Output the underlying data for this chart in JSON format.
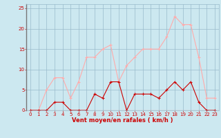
{
  "x": [
    0,
    1,
    2,
    3,
    4,
    5,
    6,
    7,
    8,
    9,
    10,
    11,
    12,
    13,
    14,
    15,
    16,
    17,
    18,
    19,
    20,
    21,
    22,
    23
  ],
  "avg_wind": [
    0,
    0,
    0,
    2,
    2,
    0,
    0,
    0,
    4,
    3,
    7,
    7,
    0,
    4,
    4,
    4,
    3,
    5,
    7,
    5,
    7,
    2,
    0,
    0
  ],
  "gust_wind": [
    0,
    0,
    5,
    8,
    8,
    3,
    7,
    13,
    13,
    15,
    16,
    7,
    11,
    13,
    15,
    15,
    15,
    18,
    23,
    21,
    21,
    13,
    3,
    3
  ],
  "avg_color": "#cc0000",
  "gust_color": "#ffaaaa",
  "bg_color": "#cce8f0",
  "grid_color": "#99bbcc",
  "xlabel": "Vent moyen/en rafales ( km/h )",
  "xlabel_color": "#cc0000",
  "tick_color": "#cc0000",
  "ylim": [
    0,
    26
  ],
  "xlim": [
    -0.5,
    23.5
  ],
  "yticks": [
    0,
    5,
    10,
    15,
    20,
    25
  ],
  "xticks": [
    0,
    1,
    2,
    3,
    4,
    5,
    6,
    7,
    8,
    9,
    10,
    11,
    12,
    13,
    14,
    15,
    16,
    17,
    18,
    19,
    20,
    21,
    22,
    23
  ],
  "xticklabels": [
    "0",
    "1",
    "2",
    "3",
    "4",
    "5",
    "6",
    "7",
    "8",
    "9",
    "10",
    "11",
    "12",
    "13",
    "14",
    "15",
    "16",
    "17",
    "18",
    "19",
    "20",
    "21",
    "22",
    "23"
  ],
  "marker": "+",
  "markersize": 3,
  "linewidth": 0.8,
  "xlabel_fontsize": 6,
  "tick_fontsize": 5,
  "spine_color": "#99bbcc"
}
